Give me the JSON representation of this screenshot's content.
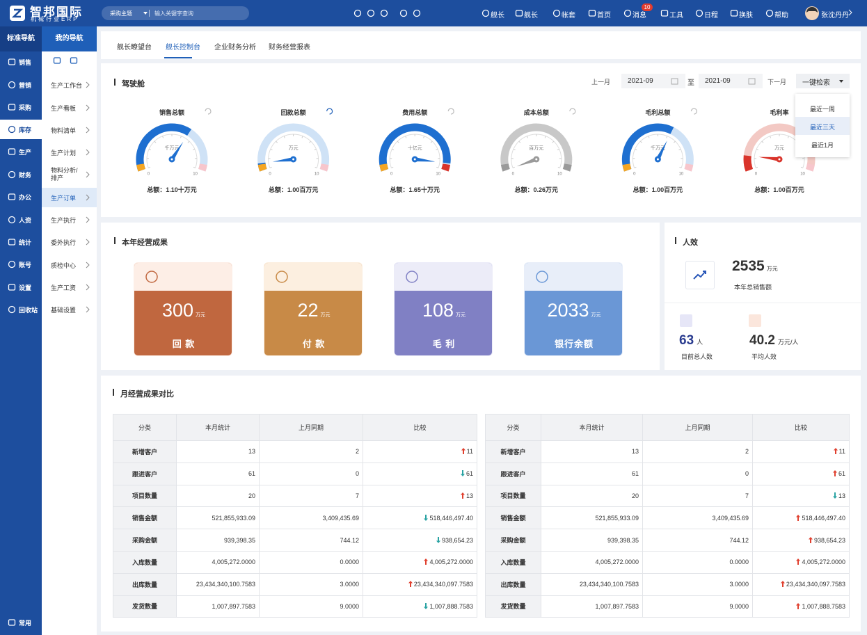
{
  "header": {
    "logo_title": "智邦国际",
    "logo_subtitle": "机械行业ERP",
    "search_scope": "采购主题",
    "search_placeholder": "输入关键字查询",
    "nav": [
      "舰长",
      "舰长",
      "帐套",
      "首页",
      "消息",
      "工具",
      "日程",
      "换肤",
      "帮助"
    ],
    "message_badge": 10,
    "user": "张沈丹丹"
  },
  "sidebar": {
    "title": "标准导航",
    "items": [
      "销售",
      "营销",
      "采购",
      "库存",
      "生产",
      "财务",
      "办公",
      "人资",
      "统计",
      "账号",
      "设置",
      "回收站"
    ],
    "active": 3,
    "bottom": "常用"
  },
  "subnav": {
    "title": "我的导航",
    "items": [
      "生产工作台",
      "生产看板",
      "物料清单",
      "生产计划",
      "物料分析/排产",
      "生产订单",
      "生产执行",
      "委外执行",
      "质检中心",
      "生产工资",
      "基础设置"
    ],
    "active": 5
  },
  "tabs": {
    "items": [
      "舰长瞭望台",
      "舰长控制台",
      "企业财务分析",
      "财务经营报表"
    ],
    "active": 1
  },
  "cockpit": {
    "title": "驾驶舱",
    "prev": "上一月",
    "from": "2021-09",
    "sep": "至",
    "to": "2021-09",
    "next": "下一月",
    "search": "一键检索",
    "dropdown": [
      "最近一周",
      "最近三天",
      "最近1月"
    ],
    "dropdown_active": 1,
    "gauge_min": 0,
    "gauge_max": 10,
    "gauges": [
      {
        "title": "销售总额",
        "unit": "千万元",
        "value": 6.5,
        "color": "#1e6fd0",
        "track": "#cfe2f6",
        "start_color": "#f5a623",
        "end_color": "#f7c6cc",
        "total": "总额：1.10十万元"
      },
      {
        "title": "回款总额",
        "unit": "万元",
        "value": 0.6,
        "color": "#1e6fd0",
        "track": "#cfe2f6",
        "start_color": "#f5a623",
        "end_color": "#f7c6cc",
        "total": "总额：1.00百万元"
      },
      {
        "title": "费用总额",
        "unit": "十亿元",
        "value": 9.4,
        "color": "#1e6fd0",
        "track": "#cfe2f6",
        "start_color": "#f5a623",
        "end_color": "#d9342b",
        "total": "总额：1.65十万元"
      },
      {
        "title": "成本总额",
        "unit": "百万元",
        "value": 0,
        "color": "#9a9a9a",
        "track": "#c8c8c8",
        "start_color": "#9a9a9a",
        "end_color": "#9a9a9a",
        "total": "总额：0.26万元"
      },
      {
        "title": "毛利总额",
        "unit": "千万元",
        "value": 6.2,
        "color": "#1e6fd0",
        "track": "#cfe2f6",
        "start_color": "#f5a623",
        "end_color": "#f7c6cc",
        "total": "总额：1.00百万元"
      },
      {
        "title": "毛利率",
        "unit": "万元",
        "value": 1.2,
        "color": "#d9342b",
        "track": "#f3c9c4",
        "start_color": "#d9342b",
        "end_color": "#f7c6cc",
        "total": "总额：1.00百万元"
      }
    ]
  },
  "results": {
    "title": "本年经营成果",
    "cards": [
      {
        "value": 300,
        "unit": "万元",
        "label": "回 款",
        "color": "#c0673f",
        "light": "#fdeee6"
      },
      {
        "value": 22,
        "unit": "万元",
        "label": "付 款",
        "color": "#c88a47",
        "light": "#fcefe0"
      },
      {
        "value": 108,
        "unit": "万元",
        "label": "毛 利",
        "color": "#8080c4",
        "light": "#ececf8"
      },
      {
        "value": 2033,
        "unit": "万元",
        "label": "银行余额",
        "color": "#6a97d6",
        "light": "#e8eef9"
      }
    ]
  },
  "people": {
    "title": "人效",
    "sales_value": 2535,
    "sales_unit": "万元",
    "sales_label": "本年总销售额",
    "headcount": 63,
    "headcount_unit": "人",
    "headcount_label": "目前总人数",
    "avg": 40.2,
    "avg_unit": "万元/人",
    "avg_label": "平均人效"
  },
  "comparison": {
    "title": "月经营成果对比",
    "tables": [
      {
        "headers": [
          "分类",
          "本月统计",
          "上月同期",
          "比较"
        ],
        "rows": [
          {
            "label": "新增客户",
            "current": "13",
            "previous": "2",
            "change": "11",
            "trend": "up"
          },
          {
            "label": "跟进客户",
            "current": "61",
            "previous": "0",
            "change": "61",
            "trend": "down"
          },
          {
            "label": "项目数量",
            "current": "20",
            "previous": "7",
            "change": "13",
            "trend": "up"
          },
          {
            "label": "销售金额",
            "current": "521,855,933.09",
            "previous": "3,409,435.69",
            "change": "518,446,497.40",
            "trend": "down"
          },
          {
            "label": "采购金额",
            "current": "939,398.35",
            "previous": "744.12",
            "change": "938,654.23",
            "trend": "down"
          },
          {
            "label": "入库数量",
            "current": "4,005,272.0000",
            "previous": "0.0000",
            "change": "4,005,272.0000",
            "trend": "up"
          },
          {
            "label": "出库数量",
            "current": "23,434,340,100.7583",
            "previous": "3.0000",
            "change": "23,434,340,097.7583",
            "trend": "up"
          },
          {
            "label": "发货数量",
            "current": "1,007,897.7583",
            "previous": "9.0000",
            "change": "1,007,888.7583",
            "trend": "down"
          }
        ]
      },
      {
        "headers": [
          "分类",
          "本月统计",
          "上月同期",
          "比较"
        ],
        "rows": [
          {
            "label": "新增客户",
            "current": "13",
            "previous": "2",
            "change": "11",
            "trend": "up"
          },
          {
            "label": "跟进客户",
            "current": "61",
            "previous": "0",
            "change": "61",
            "trend": "up"
          },
          {
            "label": "项目数量",
            "current": "20",
            "previous": "7",
            "change": "13",
            "trend": "down"
          },
          {
            "label": "销售金额",
            "current": "521,855,933.09",
            "previous": "3,409,435.69",
            "change": "518,446,497.40",
            "trend": "up"
          },
          {
            "label": "采购金额",
            "current": "939,398.35",
            "previous": "744.12",
            "change": "938,654.23",
            "trend": "up"
          },
          {
            "label": "入库数量",
            "current": "4,005,272.0000",
            "previous": "0.0000",
            "change": "4,005,272.0000",
            "trend": "up"
          },
          {
            "label": "出库数量",
            "current": "23,434,340,100.7583",
            "previous": "3.0000",
            "change": "23,434,340,097.7583",
            "trend": "up"
          },
          {
            "label": "发货数量",
            "current": "1,007,897.7583",
            "previous": "9.0000",
            "change": "1,007,888.7583",
            "trend": "up"
          }
        ]
      }
    ]
  }
}
